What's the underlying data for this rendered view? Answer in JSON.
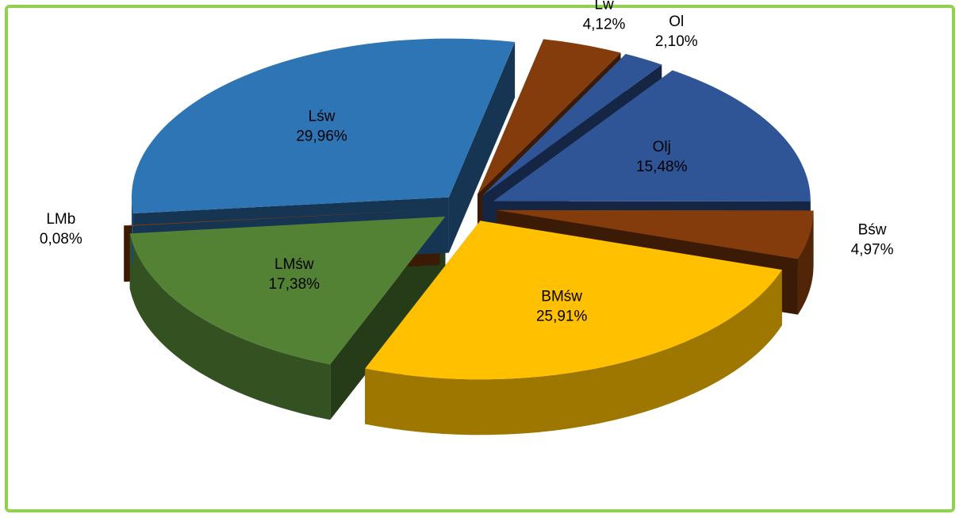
{
  "chart_data": {
    "type": "pie",
    "categories": [
      "Lw",
      "Ol",
      "Olj",
      "Bśw",
      "BMśw",
      "LMśw",
      "LMb",
      "Lśw"
    ],
    "values": [
      4.12,
      2.1,
      15.48,
      4.97,
      25.91,
      17.38,
      0.08,
      29.96
    ],
    "value_labels": [
      "4,12%",
      "2,10%",
      "15,48%",
      "4,97%",
      "25,91%",
      "17,38%",
      "0,08%",
      "29,96%"
    ],
    "colors": [
      "#843c0c",
      "#2f5597",
      "#2f5597",
      "#843c0c",
      "#ffc000",
      "#548235",
      "#843c0c",
      "#2e75b6"
    ]
  }
}
